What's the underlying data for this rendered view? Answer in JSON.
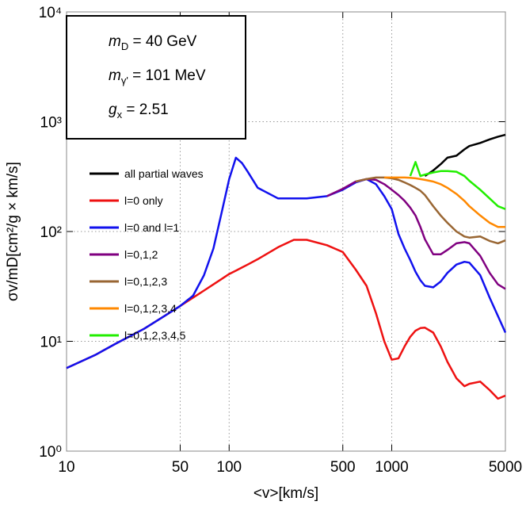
{
  "chart_data": {
    "type": "line",
    "xlabel": "<v>[km/s]",
    "ylabel": "σv/mD[cm²/g × km/s]",
    "xlog": true,
    "ylog": true,
    "grid": true,
    "xlim": [
      10,
      5000
    ],
    "ylim": [
      1,
      10000
    ],
    "xticks": [
      10,
      50,
      100,
      500,
      1000,
      5000
    ],
    "yticks": [
      {
        "value": 1,
        "label": "10⁰"
      },
      {
        "value": 10,
        "label": "10¹"
      },
      {
        "value": 100,
        "label": "10²"
      },
      {
        "value": 1000,
        "label": "10³"
      },
      {
        "value": 10000,
        "label": "10⁴"
      }
    ],
    "annotations": [
      {
        "main": "m",
        "sub": "D",
        "rest": " = 40 GeV"
      },
      {
        "main": "m",
        "sub": "γ'",
        "rest": " = 101 MeV"
      },
      {
        "main": "g",
        "sub": "x",
        "rest": " = 2.51"
      }
    ],
    "x": [
      10,
      15,
      20,
      30,
      40,
      50,
      60,
      70,
      80,
      90,
      100,
      110,
      120,
      130,
      150,
      200,
      250,
      300,
      400,
      500,
      600,
      700,
      800,
      900,
      1000,
      1100,
      1200,
      1300,
      1400,
      1500,
      1600,
      1800,
      2000,
      2200,
      2500,
      2800,
      3000,
      3500,
      4000,
      4500,
      5000
    ],
    "series": [
      {
        "name": "all partial waves",
        "color": "#000000",
        "values": [
          null,
          null,
          null,
          null,
          null,
          null,
          null,
          null,
          null,
          null,
          null,
          null,
          null,
          null,
          null,
          null,
          null,
          null,
          null,
          null,
          null,
          null,
          null,
          null,
          null,
          null,
          null,
          null,
          null,
          null,
          320,
          360,
          410,
          470,
          490,
          560,
          600,
          640,
          690,
          730,
          760
        ]
      },
      {
        "name": "l=0 only",
        "color": "#ee1111",
        "values": [
          5.7,
          7.5,
          9.5,
          13,
          17,
          21,
          25,
          29,
          33,
          37,
          41,
          44,
          47,
          50,
          56,
          72,
          84,
          84,
          75,
          65,
          45,
          32,
          18,
          10,
          6.8,
          7,
          9,
          11,
          12.5,
          13.2,
          13.3,
          12,
          9,
          6.5,
          4.6,
          3.9,
          4.1,
          4.3,
          3.6,
          3,
          3.2
        ]
      },
      {
        "name": "l=0 and l=1",
        "color": "#1111ee",
        "values": [
          5.7,
          7.5,
          9.5,
          13,
          17,
          21,
          26,
          40,
          70,
          150,
          300,
          470,
          420,
          350,
          250,
          200,
          200,
          200,
          210,
          240,
          280,
          300,
          270,
          210,
          160,
          95,
          70,
          55,
          43,
          36,
          32,
          31,
          35,
          42,
          50,
          53,
          52,
          40,
          25,
          17,
          12
        ]
      },
      {
        "name": "l=0,1,2",
        "color": "#800080",
        "values": [
          null,
          null,
          null,
          null,
          null,
          null,
          null,
          null,
          null,
          null,
          null,
          null,
          null,
          null,
          null,
          null,
          null,
          null,
          210,
          245,
          285,
          300,
          295,
          270,
          240,
          215,
          190,
          165,
          140,
          110,
          85,
          62,
          62,
          68,
          78,
          80,
          78,
          60,
          42,
          33,
          30
        ]
      },
      {
        "name": "l=0,1,2,3",
        "color": "#996633",
        "values": [
          null,
          null,
          null,
          null,
          null,
          null,
          null,
          null,
          null,
          null,
          null,
          null,
          null,
          null,
          null,
          null,
          null,
          null,
          null,
          null,
          285,
          300,
          310,
          310,
          305,
          295,
          280,
          265,
          250,
          235,
          215,
          170,
          140,
          120,
          100,
          90,
          88,
          90,
          82,
          78,
          83
        ]
      },
      {
        "name": "l=0,1,2,3,4",
        "color": "#ff8800",
        "values": [
          null,
          null,
          null,
          null,
          null,
          null,
          null,
          null,
          null,
          null,
          null,
          null,
          null,
          null,
          null,
          null,
          null,
          null,
          null,
          null,
          null,
          null,
          null,
          310,
          310,
          310,
          310,
          308,
          305,
          300,
          295,
          285,
          270,
          250,
          220,
          190,
          170,
          140,
          120,
          110,
          110
        ]
      },
      {
        "name": "l=0,1,2,3,4,5",
        "color": "#22ee00",
        "values": [
          null,
          null,
          null,
          null,
          null,
          null,
          null,
          null,
          null,
          null,
          null,
          null,
          null,
          null,
          null,
          null,
          null,
          null,
          null,
          null,
          null,
          null,
          null,
          null,
          null,
          null,
          null,
          320,
          430,
          320,
          330,
          345,
          355,
          355,
          350,
          320,
          290,
          240,
          200,
          170,
          160
        ]
      }
    ]
  }
}
